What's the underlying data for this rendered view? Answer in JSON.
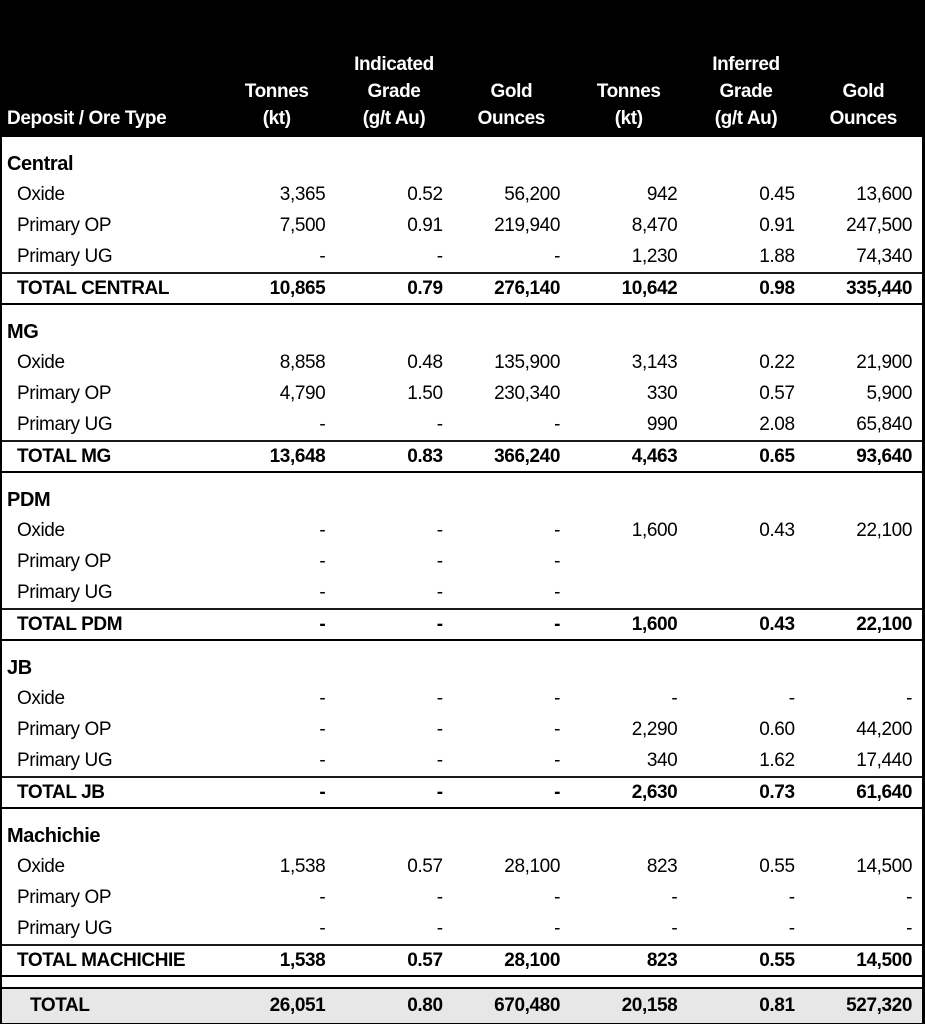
{
  "colors": {
    "header_bg": "#000000",
    "header_text": "#ffffff",
    "grand_total_bg": "#e7e7e7",
    "border": "#000000"
  },
  "table": {
    "header": {
      "indicated": "Indicated",
      "inferred": "Inferred",
      "deposit_col": "Deposit / Ore Type",
      "sub1": [
        "Tonnes",
        "Grade",
        "Gold",
        "Tonnes",
        "Grade",
        "Gold"
      ],
      "sub2": [
        "(kt)",
        "(g/t Au)",
        "Ounces",
        "(kt)",
        "(g/t Au)",
        "Ounces"
      ]
    },
    "sections": [
      {
        "name": "Central",
        "rows": [
          {
            "label": "Oxide",
            "values": [
              "3,365",
              "0.52",
              "56,200",
              "942",
              "0.45",
              "13,600"
            ]
          },
          {
            "label": "Primary OP",
            "values": [
              "7,500",
              "0.91",
              "219,940",
              "8,470",
              "0.91",
              "247,500"
            ]
          },
          {
            "label": "Primary UG",
            "values": [
              "-",
              "-",
              "-",
              "1,230",
              "1.88",
              "74,340"
            ]
          }
        ],
        "total": {
          "label": "TOTAL CENTRAL",
          "values": [
            "10,865",
            "0.79",
            "276,140",
            "10,642",
            "0.98",
            "335,440"
          ]
        }
      },
      {
        "name": "MG",
        "rows": [
          {
            "label": "Oxide",
            "values": [
              "8,858",
              "0.48",
              "135,900",
              "3,143",
              "0.22",
              "21,900"
            ]
          },
          {
            "label": "Primary OP",
            "values": [
              "4,790",
              "1.50",
              "230,340",
              "330",
              "0.57",
              "5,900"
            ]
          },
          {
            "label": "Primary UG",
            "values": [
              "-",
              "-",
              "-",
              "990",
              "2.08",
              "65,840"
            ]
          }
        ],
        "total": {
          "label": "TOTAL MG",
          "values": [
            "13,648",
            "0.83",
            "366,240",
            "4,463",
            "0.65",
            "93,640"
          ]
        }
      },
      {
        "name": "PDM",
        "rows": [
          {
            "label": "Oxide",
            "values": [
              "-",
              "-",
              "-",
              "1,600",
              "0.43",
              "22,100"
            ]
          },
          {
            "label": "Primary OP",
            "values": [
              "-",
              "-",
              "-",
              "",
              "",
              ""
            ]
          },
          {
            "label": "Primary UG",
            "values": [
              "-",
              "-",
              "-",
              "",
              "",
              ""
            ]
          }
        ],
        "total": {
          "label": "TOTAL PDM",
          "values": [
            "-",
            "-",
            "-",
            "1,600",
            "0.43",
            "22,100"
          ]
        }
      },
      {
        "name": "JB",
        "rows": [
          {
            "label": "Oxide",
            "values": [
              "-",
              "-",
              "-",
              "-",
              "-",
              "-"
            ]
          },
          {
            "label": "Primary OP",
            "values": [
              "-",
              "-",
              "-",
              "2,290",
              "0.60",
              "44,200"
            ]
          },
          {
            "label": "Primary UG",
            "values": [
              "-",
              "-",
              "-",
              "340",
              "1.62",
              "17,440"
            ]
          }
        ],
        "total": {
          "label": "TOTAL JB",
          "values": [
            "-",
            "-",
            "-",
            "2,630",
            "0.73",
            "61,640"
          ]
        }
      },
      {
        "name": "Machichie",
        "rows": [
          {
            "label": "Oxide",
            "values": [
              "1,538",
              "0.57",
              "28,100",
              "823",
              "0.55",
              "14,500"
            ]
          },
          {
            "label": "Primary OP",
            "values": [
              "-",
              "-",
              "-",
              "-",
              "-",
              "-"
            ]
          },
          {
            "label": "Primary UG",
            "values": [
              "-",
              "-",
              "-",
              "-",
              "-",
              "-"
            ]
          }
        ],
        "total": {
          "label": "TOTAL MACHICHIE",
          "values": [
            "1,538",
            "0.57",
            "28,100",
            "823",
            "0.55",
            "14,500"
          ]
        }
      }
    ],
    "grand_total": {
      "label": "TOTAL",
      "values": [
        "26,051",
        "0.80",
        "670,480",
        "20,158",
        "0.81",
        "527,320"
      ]
    }
  }
}
